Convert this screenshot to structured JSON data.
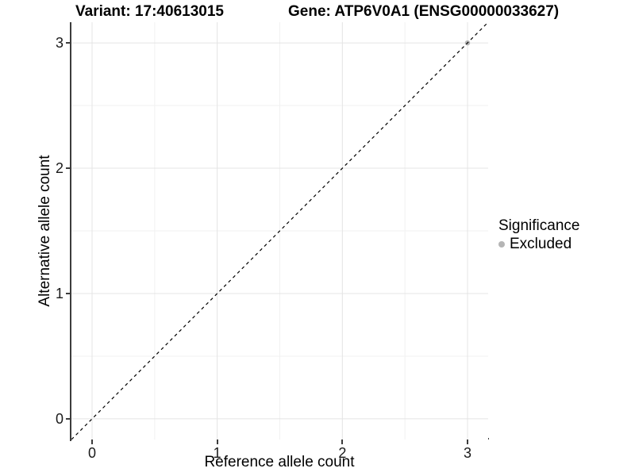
{
  "chart_data": {
    "type": "scatter",
    "title_left": "Variant: 17:40613015",
    "title_right": "Gene: ATP6V0A1 (ENSG00000033627)",
    "xlabel": "Reference allele count",
    "ylabel": "Alternative allele count",
    "xlim": [
      -0.165,
      3.165
    ],
    "ylim": [
      -0.165,
      3.165
    ],
    "x_major_ticks": [
      0,
      1,
      2,
      3
    ],
    "y_major_ticks": [
      0,
      1,
      2,
      3
    ],
    "x_minor_ticks": [
      0.5,
      1.5,
      2.5
    ],
    "y_minor_ticks": [
      0.5,
      1.5,
      2.5
    ],
    "grid": true,
    "reference_line": {
      "type": "abline",
      "slope": 1,
      "intercept": 0,
      "style": "dashed",
      "color": "#000000"
    },
    "series": [
      {
        "name": "Excluded",
        "color": "#b5b5b5",
        "points": [
          {
            "x": 3,
            "y": 3
          }
        ]
      }
    ],
    "legend": {
      "title": "Significance",
      "position": "right",
      "items": [
        {
          "label": "Excluded",
          "color": "#b5b5b5",
          "marker": "circle"
        }
      ]
    },
    "colors": {
      "background": "#ffffff",
      "axis_line": "#3c3c3c",
      "tick_text": "#1a1a1a",
      "grid_major": "#e4e4e4",
      "grid_minor": "#f1f1f1"
    }
  }
}
